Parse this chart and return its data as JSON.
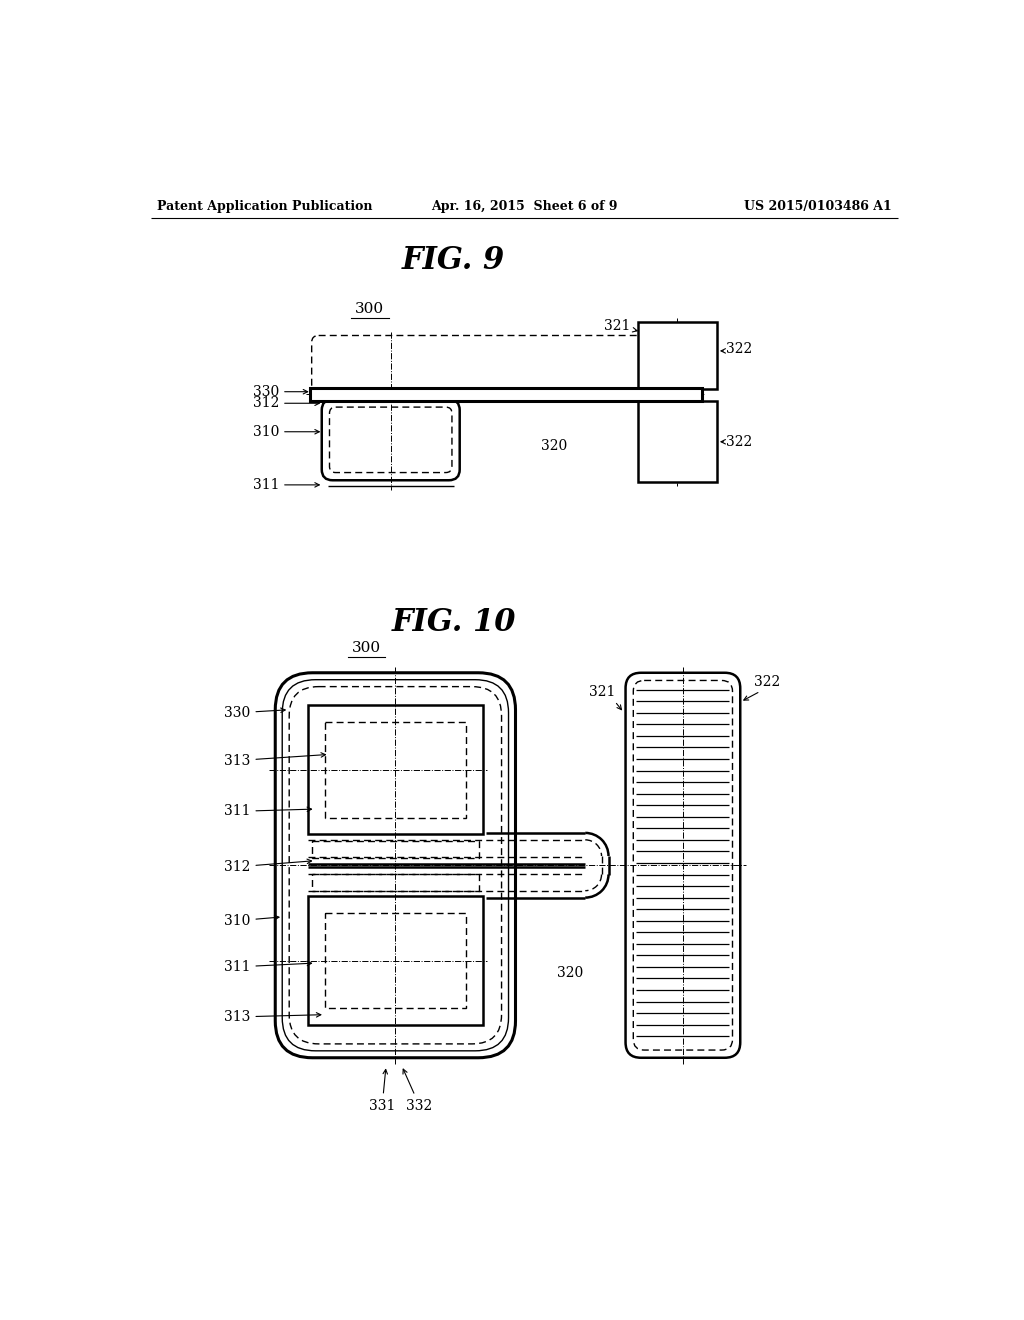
{
  "background_color": "#ffffff",
  "header_left": "Patent Application Publication",
  "header_center": "Apr. 16, 2015  Sheet 6 of 9",
  "header_right": "US 2015/0103486 A1",
  "fig9_title": "FIG. 9",
  "fig10_title": "FIG. 10",
  "label_300": "300",
  "label_310": "310",
  "label_311": "311",
  "label_312": "312",
  "label_313": "313",
  "label_320": "320",
  "label_321": "321",
  "label_322": "322",
  "label_330": "330",
  "label_331": "331",
  "label_332": "332"
}
